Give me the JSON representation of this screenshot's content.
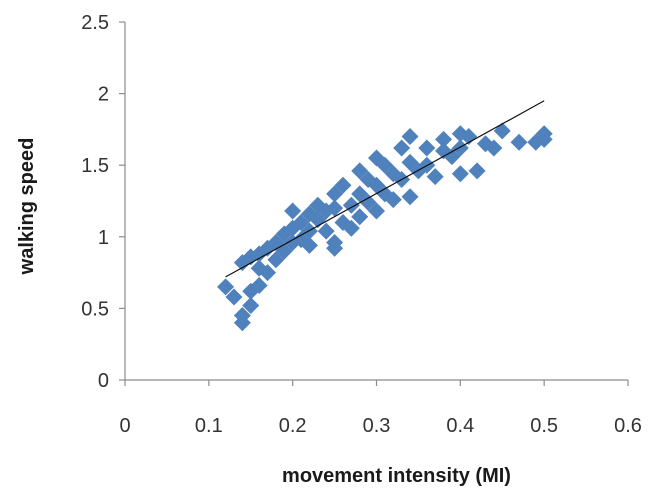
{
  "chart_data": {
    "type": "scatter",
    "xlabel": "movement intensity (MI)",
    "ylabel": "walking speed",
    "xlim": [
      0,
      0.6
    ],
    "ylim": [
      0,
      2.5
    ],
    "xticks": [
      0,
      0.1,
      0.2,
      0.3,
      0.4,
      0.5,
      0.6
    ],
    "yticks": [
      0,
      0.5,
      1,
      1.5,
      2,
      2.5
    ],
    "xtick_labels": [
      "0",
      "0.1",
      "0.2",
      "0.3",
      "0.4",
      "0.5",
      "0.6"
    ],
    "ytick_labels": [
      "0",
      "0.5",
      "1",
      "1.5",
      "2",
      "2.5"
    ],
    "grid": false,
    "legend": "none",
    "marker": "diamond",
    "colors": {
      "marker": "#4F81BD",
      "trendline": "#111111",
      "axis": "#8c8c8c"
    },
    "series": [
      {
        "points": [
          [
            0.12,
            0.65
          ],
          [
            0.13,
            0.58
          ],
          [
            0.14,
            0.45
          ],
          [
            0.14,
            0.4
          ],
          [
            0.15,
            0.52
          ],
          [
            0.15,
            0.62
          ],
          [
            0.14,
            0.82
          ],
          [
            0.15,
            0.86
          ],
          [
            0.16,
            0.66
          ],
          [
            0.16,
            0.78
          ],
          [
            0.16,
            0.88
          ],
          [
            0.17,
            0.75
          ],
          [
            0.17,
            0.92
          ],
          [
            0.18,
            0.84
          ],
          [
            0.18,
            0.96
          ],
          [
            0.19,
            1.02
          ],
          [
            0.19,
            0.9
          ],
          [
            0.2,
            1.18
          ],
          [
            0.2,
            1.06
          ],
          [
            0.2,
            0.96
          ],
          [
            0.21,
            1.1
          ],
          [
            0.21,
            0.98
          ],
          [
            0.22,
            1.16
          ],
          [
            0.22,
            1.04
          ],
          [
            0.22,
            0.94
          ],
          [
            0.23,
            1.22
          ],
          [
            0.23,
            1.12
          ],
          [
            0.24,
            1.18
          ],
          [
            0.24,
            1.04
          ],
          [
            0.25,
            1.3
          ],
          [
            0.25,
            1.2
          ],
          [
            0.25,
            0.96
          ],
          [
            0.25,
            0.92
          ],
          [
            0.26,
            1.36
          ],
          [
            0.26,
            1.1
          ],
          [
            0.27,
            1.22
          ],
          [
            0.27,
            1.06
          ],
          [
            0.28,
            1.46
          ],
          [
            0.28,
            1.3
          ],
          [
            0.28,
            1.14
          ],
          [
            0.29,
            1.4
          ],
          [
            0.29,
            1.24
          ],
          [
            0.3,
            1.55
          ],
          [
            0.3,
            1.36
          ],
          [
            0.3,
            1.18
          ],
          [
            0.31,
            1.5
          ],
          [
            0.31,
            1.3
          ],
          [
            0.32,
            1.44
          ],
          [
            0.32,
            1.26
          ],
          [
            0.33,
            1.62
          ],
          [
            0.33,
            1.4
          ],
          [
            0.34,
            1.7
          ],
          [
            0.34,
            1.52
          ],
          [
            0.34,
            1.28
          ],
          [
            0.35,
            1.46
          ],
          [
            0.36,
            1.62
          ],
          [
            0.36,
            1.5
          ],
          [
            0.37,
            1.42
          ],
          [
            0.38,
            1.6
          ],
          [
            0.38,
            1.68
          ],
          [
            0.39,
            1.56
          ],
          [
            0.4,
            1.72
          ],
          [
            0.4,
            1.62
          ],
          [
            0.4,
            1.44
          ],
          [
            0.41,
            1.7
          ],
          [
            0.42,
            1.46
          ],
          [
            0.43,
            1.65
          ],
          [
            0.44,
            1.62
          ],
          [
            0.45,
            1.74
          ],
          [
            0.47,
            1.66
          ],
          [
            0.49,
            1.66
          ],
          [
            0.5,
            1.72
          ],
          [
            0.5,
            1.68
          ]
        ]
      }
    ],
    "trendline": {
      "x": [
        0.12,
        0.5
      ],
      "y": [
        0.72,
        1.95
      ]
    }
  }
}
